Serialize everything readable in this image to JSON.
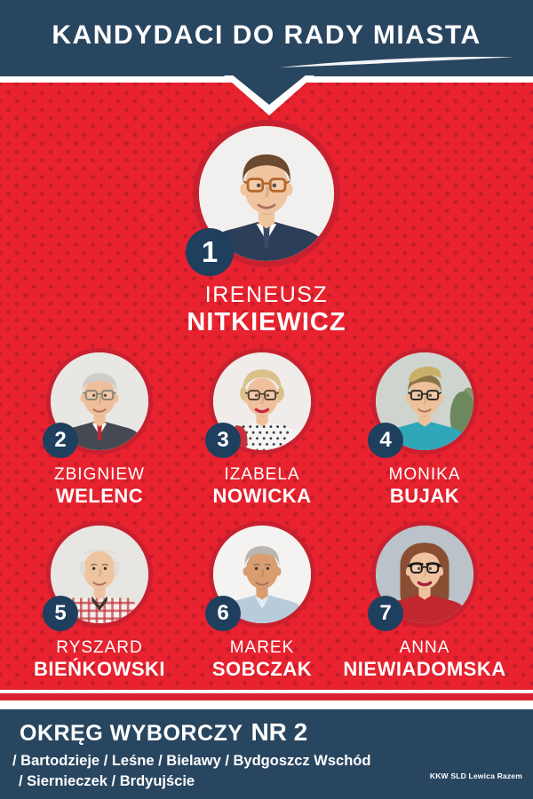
{
  "poster": {
    "title": "KANDYDACI DO RADY MIASTA",
    "footer": {
      "district_label": "OKRĘG WYBORCZY",
      "district_number": "NR 2",
      "districts_line1": "/ Bartodzieje / Leśne / Bielawy / Bydgoszcz Wschód",
      "districts_line2": "/ Siernieczek / Brdyujście",
      "committee": "KKW SLD Lewica Razem"
    },
    "colors": {
      "navy": "#294660",
      "badge_navy": "#1f3f5e",
      "red": "#e8222f",
      "red_dot": "#c21d2a",
      "stripe_red": "#d92030",
      "ring": "#c9202f",
      "white": "#ffffff"
    }
  },
  "candidates": [
    {
      "number": "1",
      "first_name": "IRENEUSZ",
      "last_name": "NITKIEWICZ",
      "avatar": {
        "bg": "#f2f0ee",
        "skin": "#f0c49e",
        "hair": "#6b4a2f",
        "style": "short",
        "glasses": "#b5652a",
        "top": "#2c3e58",
        "top_style": "plain",
        "shirt": "#ffffff",
        "tie": "#3a4a66"
      }
    },
    {
      "number": "2",
      "first_name": "ZBIGNIEW",
      "last_name": "WELENC",
      "avatar": {
        "bg": "#e9e7e4",
        "skin": "#eebf9a",
        "hair": "#cfcdc8",
        "style": "short",
        "glasses": "#8a8478",
        "top": "#454a52",
        "top_style": "plain",
        "shirt": "#ffffff",
        "tie": "#c4242f"
      }
    },
    {
      "number": "3",
      "first_name": "IZABELA",
      "last_name": "NOWICKA",
      "avatar": {
        "bg": "#efece9",
        "skin": "#f0c09c",
        "hair": "#d9c189",
        "style": "voluminous",
        "glasses": "#54452f",
        "top": "#f4f4f2",
        "top_style": "polka",
        "lipstick": "#c42945"
      }
    },
    {
      "number": "4",
      "first_name": "MONIKA",
      "last_name": "BUJAK",
      "avatar": {
        "bg": "#cfd4cf",
        "skin": "#eec09a",
        "hair": "#8a7346",
        "hair2": "#c9b06a",
        "style": "quiff",
        "glasses": "#2e2b28",
        "top": "#2fa7b8",
        "top_style": "plain",
        "backdrop": "plant"
      }
    },
    {
      "number": "5",
      "first_name": "RYSZARD",
      "last_name": "BIEŃKOWSKI",
      "avatar": {
        "bg": "#e8e6e2",
        "skin": "#eec3a0",
        "hair": "#dedcd6",
        "style": "balding",
        "top": "#f2efe9",
        "top_style": "plaid"
      }
    },
    {
      "number": "6",
      "first_name": "MAREK",
      "last_name": "SOBCZAK",
      "avatar": {
        "bg": "#f4f3f1",
        "skin": "#d99d6f",
        "hair": "#b9b6af",
        "style": "short",
        "top": "#b7cbdb",
        "top_style": "plain",
        "shirt": "#e7eef4",
        "collar": "#a3bccf"
      }
    },
    {
      "number": "7",
      "first_name": "ANNA",
      "last_name": "NIEWIADOMSKA",
      "avatar": {
        "bg": "#b9c3c9",
        "skin": "#f0c3a0",
        "hair": "#8a4f33",
        "style": "long",
        "glasses": "#1d1a18",
        "glasses_style": "cat",
        "top": "#c0272f",
        "top_style": "plain",
        "lipstick": "#a3203a"
      }
    }
  ]
}
